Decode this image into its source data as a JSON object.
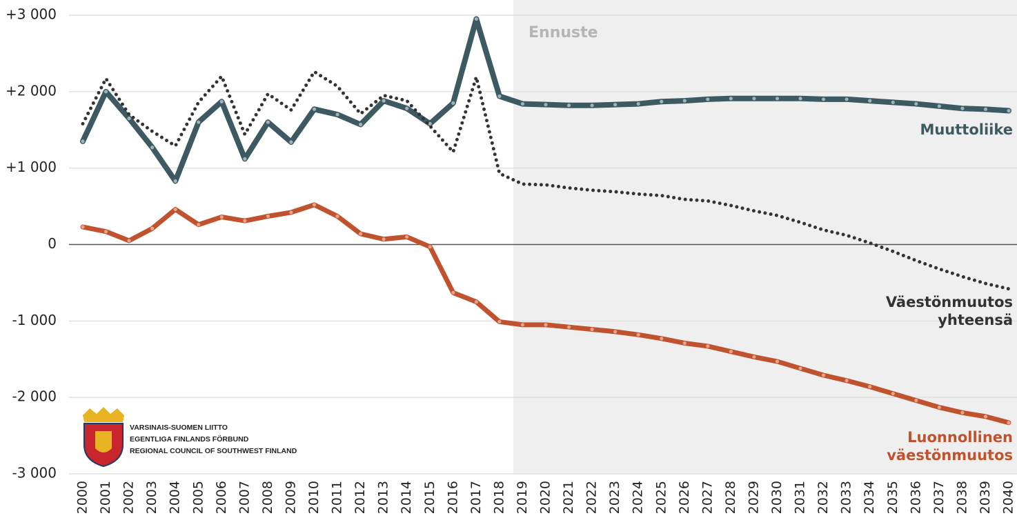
{
  "chart_data": {
    "type": "line",
    "x": [
      2000,
      2001,
      2002,
      2003,
      2004,
      2005,
      2006,
      2007,
      2008,
      2009,
      2010,
      2011,
      2012,
      2013,
      2014,
      2015,
      2016,
      2017,
      2018,
      2019,
      2020,
      2021,
      2022,
      2023,
      2024,
      2025,
      2026,
      2027,
      2028,
      2029,
      2030,
      2031,
      2032,
      2033,
      2034,
      2035,
      2036,
      2037,
      2038,
      2039,
      2040
    ],
    "xlim": [
      2000,
      2040
    ],
    "xticks": [
      2000,
      2001,
      2002,
      2003,
      2004,
      2005,
      2006,
      2007,
      2008,
      2009,
      2010,
      2011,
      2012,
      2013,
      2014,
      2015,
      2016,
      2017,
      2018,
      2019,
      2020,
      2021,
      2022,
      2023,
      2024,
      2025,
      2026,
      2027,
      2028,
      2029,
      2030,
      2031,
      2032,
      2033,
      2034,
      2035,
      2036,
      2037,
      2038,
      2039,
      2040
    ],
    "ylim": [
      -3000,
      3000
    ],
    "yticks": [
      {
        "value": 3000,
        "label": "+3 000"
      },
      {
        "value": 2000,
        "label": "+2 000"
      },
      {
        "value": 1000,
        "label": "+1 000"
      },
      0,
      {
        "value": -1000,
        "label": "-1 000"
      },
      {
        "value": -2000,
        "label": "-2 000"
      },
      {
        "value": -3000,
        "label": "-3 000"
      }
    ],
    "grid": true,
    "forecast": {
      "label": "Ennuste",
      "x_start": 2018.6
    },
    "series": [
      {
        "name": "Muuttoliike",
        "color": "#3d5a62",
        "style": "solid",
        "values": [
          1350,
          2000,
          1650,
          1270,
          830,
          1600,
          1870,
          1120,
          1600,
          1340,
          1770,
          1700,
          1570,
          1880,
          1780,
          1580,
          1850,
          2950,
          1940,
          1840,
          1830,
          1820,
          1820,
          1830,
          1840,
          1870,
          1880,
          1900,
          1910,
          1910,
          1910,
          1910,
          1900,
          1900,
          1880,
          1860,
          1840,
          1810,
          1780,
          1770,
          1750
        ]
      },
      {
        "name": "Väestönmuutos yhteensä",
        "color": "#333333",
        "style": "dotted",
        "values": [
          1580,
          2170,
          1700,
          1480,
          1290,
          1860,
          2200,
          1440,
          1970,
          1760,
          2260,
          2070,
          1710,
          1950,
          1880,
          1550,
          1210,
          2190,
          930,
          790,
          780,
          740,
          710,
          690,
          660,
          640,
          590,
          570,
          510,
          440,
          380,
          290,
          190,
          120,
          20,
          -90,
          -210,
          -320,
          -420,
          -510,
          -580
        ]
      },
      {
        "name": "Luonnollinen väestönmuutos",
        "color": "#c0532e",
        "style": "solid",
        "values": [
          230,
          170,
          50,
          210,
          460,
          260,
          360,
          310,
          370,
          420,
          520,
          370,
          140,
          70,
          100,
          -30,
          -630,
          -750,
          -1010,
          -1050,
          -1050,
          -1080,
          -1110,
          -1140,
          -1180,
          -1230,
          -1290,
          -1330,
          -1400,
          -1470,
          -1530,
          -1620,
          -1710,
          -1780,
          -1860,
          -1950,
          -2040,
          -2130,
          -2200,
          -2250,
          -2330
        ]
      }
    ]
  },
  "logo": {
    "lines": [
      "VARSINAIS-SUOMEN LIITTO",
      "EGENTLIGA FINLANDS FÖRBUND",
      "REGIONAL COUNCIL OF SOUTHWEST FINLAND"
    ]
  }
}
